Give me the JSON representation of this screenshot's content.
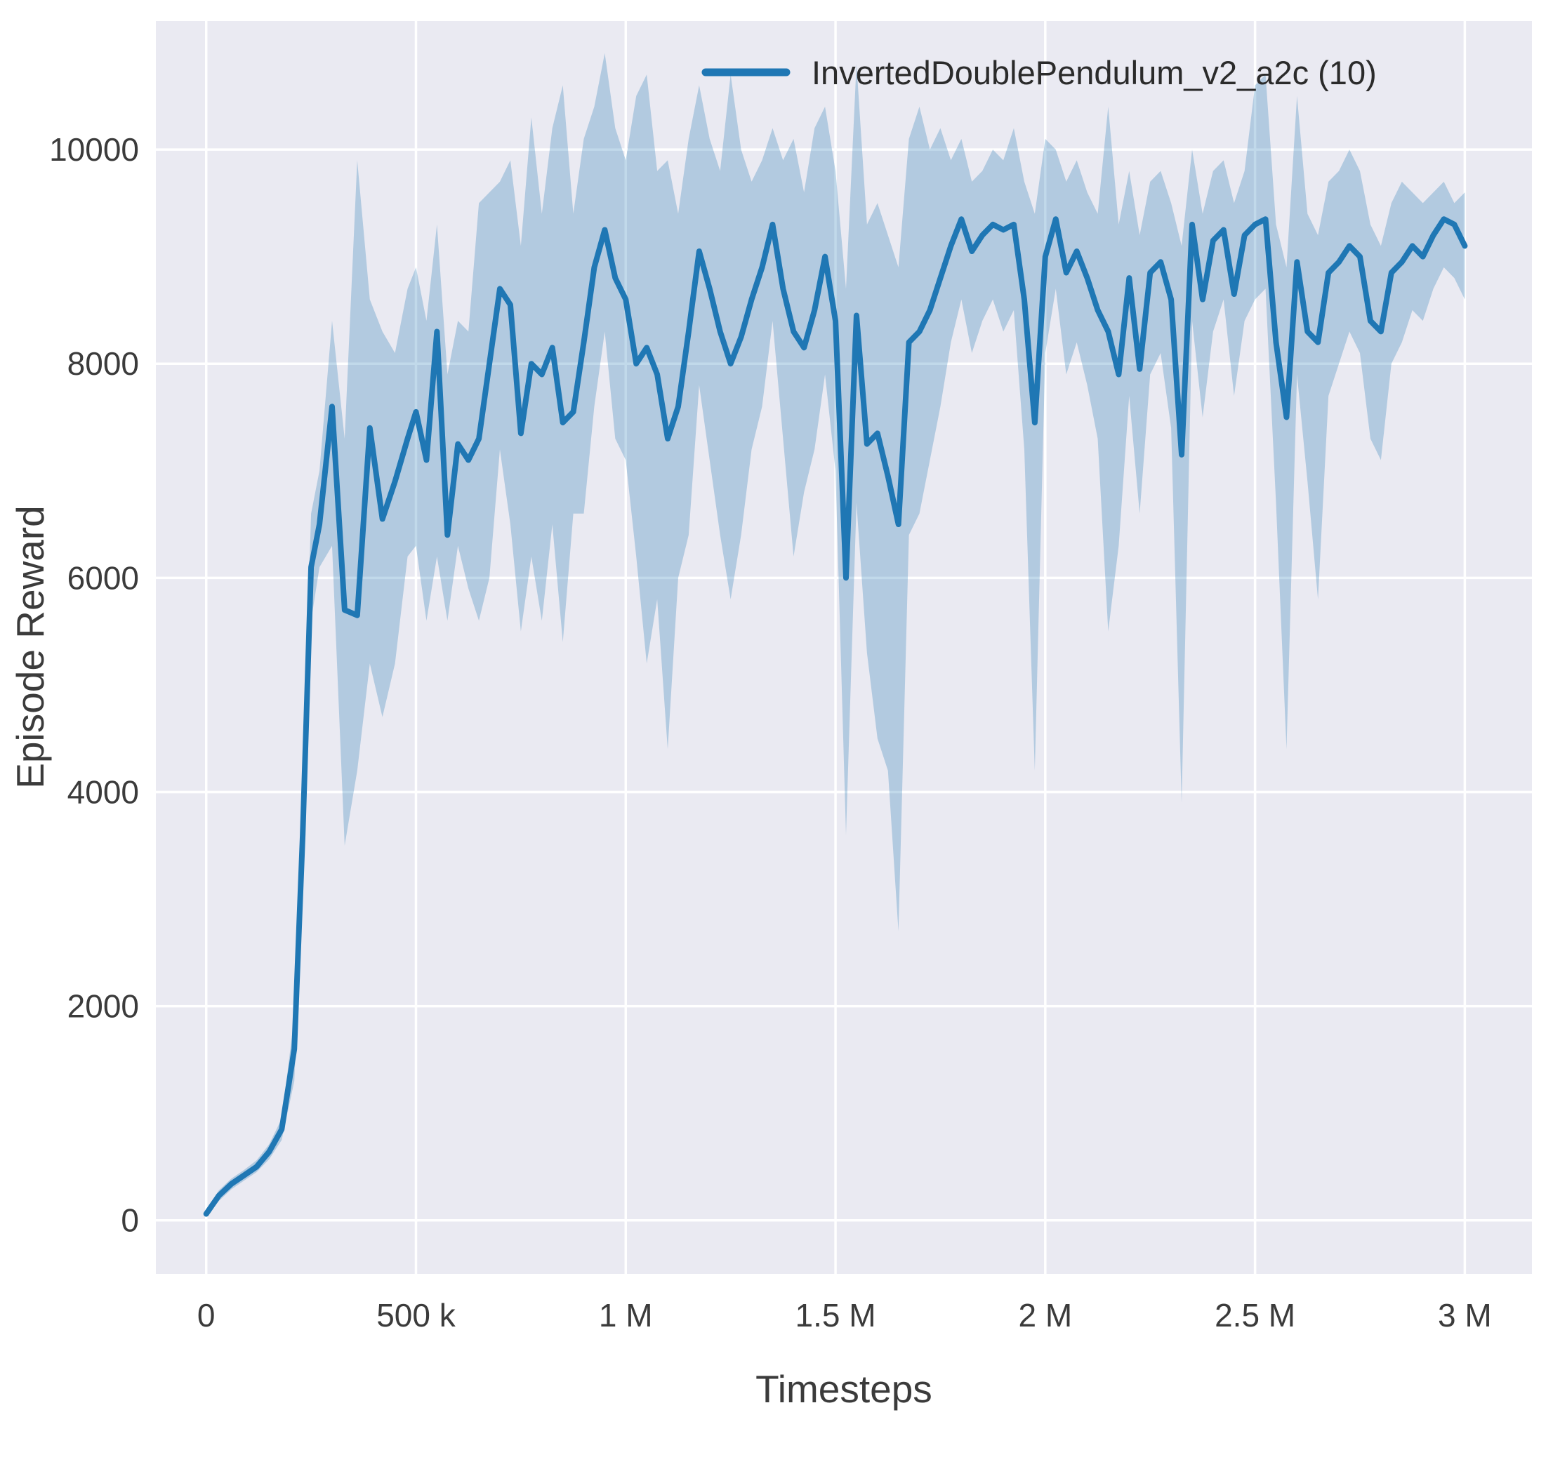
{
  "figure": {
    "background": "#ffffff",
    "plot_background": "#eaeaf2",
    "grid_color": "#ffffff"
  },
  "chart_data": {
    "type": "line",
    "title": "",
    "xlabel": "Timesteps",
    "ylabel": "Episode Reward",
    "grid": true,
    "legend_position": "upper right",
    "xlim": [
      -120000,
      3160000
    ],
    "ylim": [
      -500,
      11200
    ],
    "xticks": {
      "values": [
        0,
        500000,
        1000000,
        1500000,
        2000000,
        2500000,
        3000000
      ],
      "labels": [
        "0",
        "500 k",
        "1 M",
        "1.5 M",
        "2 M",
        "2.5 M",
        "3 M"
      ]
    },
    "yticks": {
      "values": [
        0,
        2000,
        4000,
        6000,
        8000,
        10000
      ],
      "labels": [
        "0",
        "2000",
        "4000",
        "6000",
        "8000",
        "10000"
      ]
    },
    "x": [
      0,
      30000,
      60000,
      90000,
      120000,
      150000,
      180000,
      210000,
      230000,
      250000,
      270000,
      300000,
      330000,
      360000,
      390000,
      420000,
      450000,
      480000,
      500000,
      525000,
      550000,
      575000,
      600000,
      625000,
      650000,
      675000,
      700000,
      725000,
      750000,
      775000,
      800000,
      825000,
      850000,
      875000,
      900000,
      925000,
      950000,
      975000,
      1000000,
      1025000,
      1050000,
      1075000,
      1100000,
      1125000,
      1150000,
      1175000,
      1200000,
      1225000,
      1250000,
      1275000,
      1300000,
      1325000,
      1350000,
      1375000,
      1400000,
      1425000,
      1450000,
      1475000,
      1500000,
      1525000,
      1550000,
      1575000,
      1600000,
      1625000,
      1650000,
      1675000,
      1700000,
      1725000,
      1750000,
      1775000,
      1800000,
      1825000,
      1850000,
      1875000,
      1900000,
      1925000,
      1950000,
      1975000,
      2000000,
      2025000,
      2050000,
      2075000,
      2100000,
      2125000,
      2150000,
      2175000,
      2200000,
      2225000,
      2250000,
      2275000,
      2300000,
      2325000,
      2350000,
      2375000,
      2400000,
      2425000,
      2450000,
      2475000,
      2500000,
      2525000,
      2550000,
      2575000,
      2600000,
      2625000,
      2650000,
      2675000,
      2700000,
      2725000,
      2750000,
      2775000,
      2800000,
      2825000,
      2850000,
      2875000,
      2900000,
      2925000,
      2950000,
      2975000,
      3000000
    ],
    "series": [
      {
        "name": "InvertedDoublePendulum_v2_a2c (10)",
        "color": "#1f77b4",
        "band_color": "#1f77b4",
        "band_opacity": 0.28,
        "mean": [
          60,
          230,
          340,
          420,
          500,
          640,
          850,
          1600,
          3600,
          6100,
          6500,
          7600,
          5700,
          5650,
          7400,
          6550,
          6900,
          7300,
          7550,
          7100,
          8300,
          6400,
          7250,
          7100,
          7300,
          8000,
          8700,
          8550,
          7350,
          8000,
          7900,
          8150,
          7450,
          7550,
          8200,
          8900,
          9250,
          8800,
          8600,
          8000,
          8150,
          7900,
          7300,
          7600,
          8300,
          9050,
          8700,
          8300,
          8000,
          8250,
          8600,
          8900,
          9300,
          8700,
          8300,
          8150,
          8500,
          9000,
          8400,
          6000,
          8450,
          7250,
          7350,
          6950,
          6500,
          8200,
          8300,
          8500,
          8800,
          9100,
          9350,
          9050,
          9200,
          9300,
          9250,
          9300,
          8600,
          7450,
          9000,
          9350,
          8850,
          9050,
          8800,
          8500,
          8300,
          7900,
          8800,
          7950,
          8850,
          8950,
          8600,
          7150,
          9300,
          8600,
          9150,
          9250,
          8650,
          9200,
          9300,
          9350,
          8200,
          7500,
          8950,
          8300,
          8200,
          8850,
          8950,
          9100,
          9000,
          8400,
          8300,
          8850,
          8950,
          9100,
          9000,
          9200,
          9350,
          9300,
          9100
        ],
        "lower": [
          30,
          180,
          290,
          370,
          450,
          570,
          750,
          1300,
          3100,
          5600,
          6100,
          6300,
          3500,
          4200,
          5200,
          4700,
          5200,
          6200,
          6300,
          5600,
          6200,
          5600,
          6300,
          5900,
          5600,
          6000,
          7200,
          6500,
          5500,
          6200,
          5600,
          6500,
          5400,
          6600,
          6600,
          7600,
          8300,
          7300,
          7100,
          6200,
          5200,
          5800,
          4400,
          6000,
          6400,
          7800,
          7100,
          6400,
          5800,
          6400,
          7200,
          7600,
          8400,
          7300,
          6200,
          6800,
          7200,
          7900,
          7000,
          3600,
          6700,
          5300,
          4500,
          4200,
          2700,
          6400,
          6600,
          7100,
          7600,
          8200,
          8600,
          8100,
          8400,
          8600,
          8300,
          8500,
          7200,
          4200,
          8100,
          8700,
          7900,
          8200,
          7800,
          7300,
          5500,
          6300,
          7700,
          6600,
          7900,
          8100,
          7400,
          3900,
          8400,
          7500,
          8300,
          8600,
          7700,
          8400,
          8600,
          8700,
          6700,
          4400,
          7900,
          6900,
          5800,
          7700,
          8000,
          8300,
          8100,
          7300,
          7100,
          8000,
          8200,
          8500,
          8400,
          8700,
          8900,
          8800,
          8600
        ],
        "upper": [
          90,
          280,
          390,
          470,
          560,
          710,
          950,
          1900,
          4100,
          6600,
          7000,
          8400,
          7300,
          9900,
          8600,
          8300,
          8100,
          8700,
          8900,
          8400,
          9300,
          7900,
          8400,
          8300,
          9500,
          9600,
          9700,
          9900,
          9100,
          10300,
          9400,
          10200,
          10600,
          9400,
          10100,
          10400,
          10900,
          10200,
          9900,
          10500,
          10700,
          9800,
          9900,
          9400,
          10100,
          10600,
          10100,
          9800,
          10700,
          10000,
          9700,
          9900,
          10200,
          9900,
          10100,
          9600,
          10200,
          10400,
          9800,
          8700,
          10800,
          9300,
          9500,
          9200,
          8900,
          10100,
          10400,
          10000,
          10200,
          9900,
          10100,
          9700,
          9800,
          10000,
          9900,
          10200,
          9700,
          9400,
          10100,
          10000,
          9700,
          9900,
          9600,
          9400,
          10400,
          9300,
          9800,
          9200,
          9700,
          9800,
          9500,
          9100,
          10000,
          9400,
          9800,
          9900,
          9500,
          9800,
          10600,
          10700,
          9300,
          8900,
          10500,
          9400,
          9200,
          9700,
          9800,
          10000,
          9800,
          9300,
          9100,
          9500,
          9700,
          9600,
          9500,
          9600,
          9700,
          9500,
          9600
        ]
      }
    ]
  }
}
